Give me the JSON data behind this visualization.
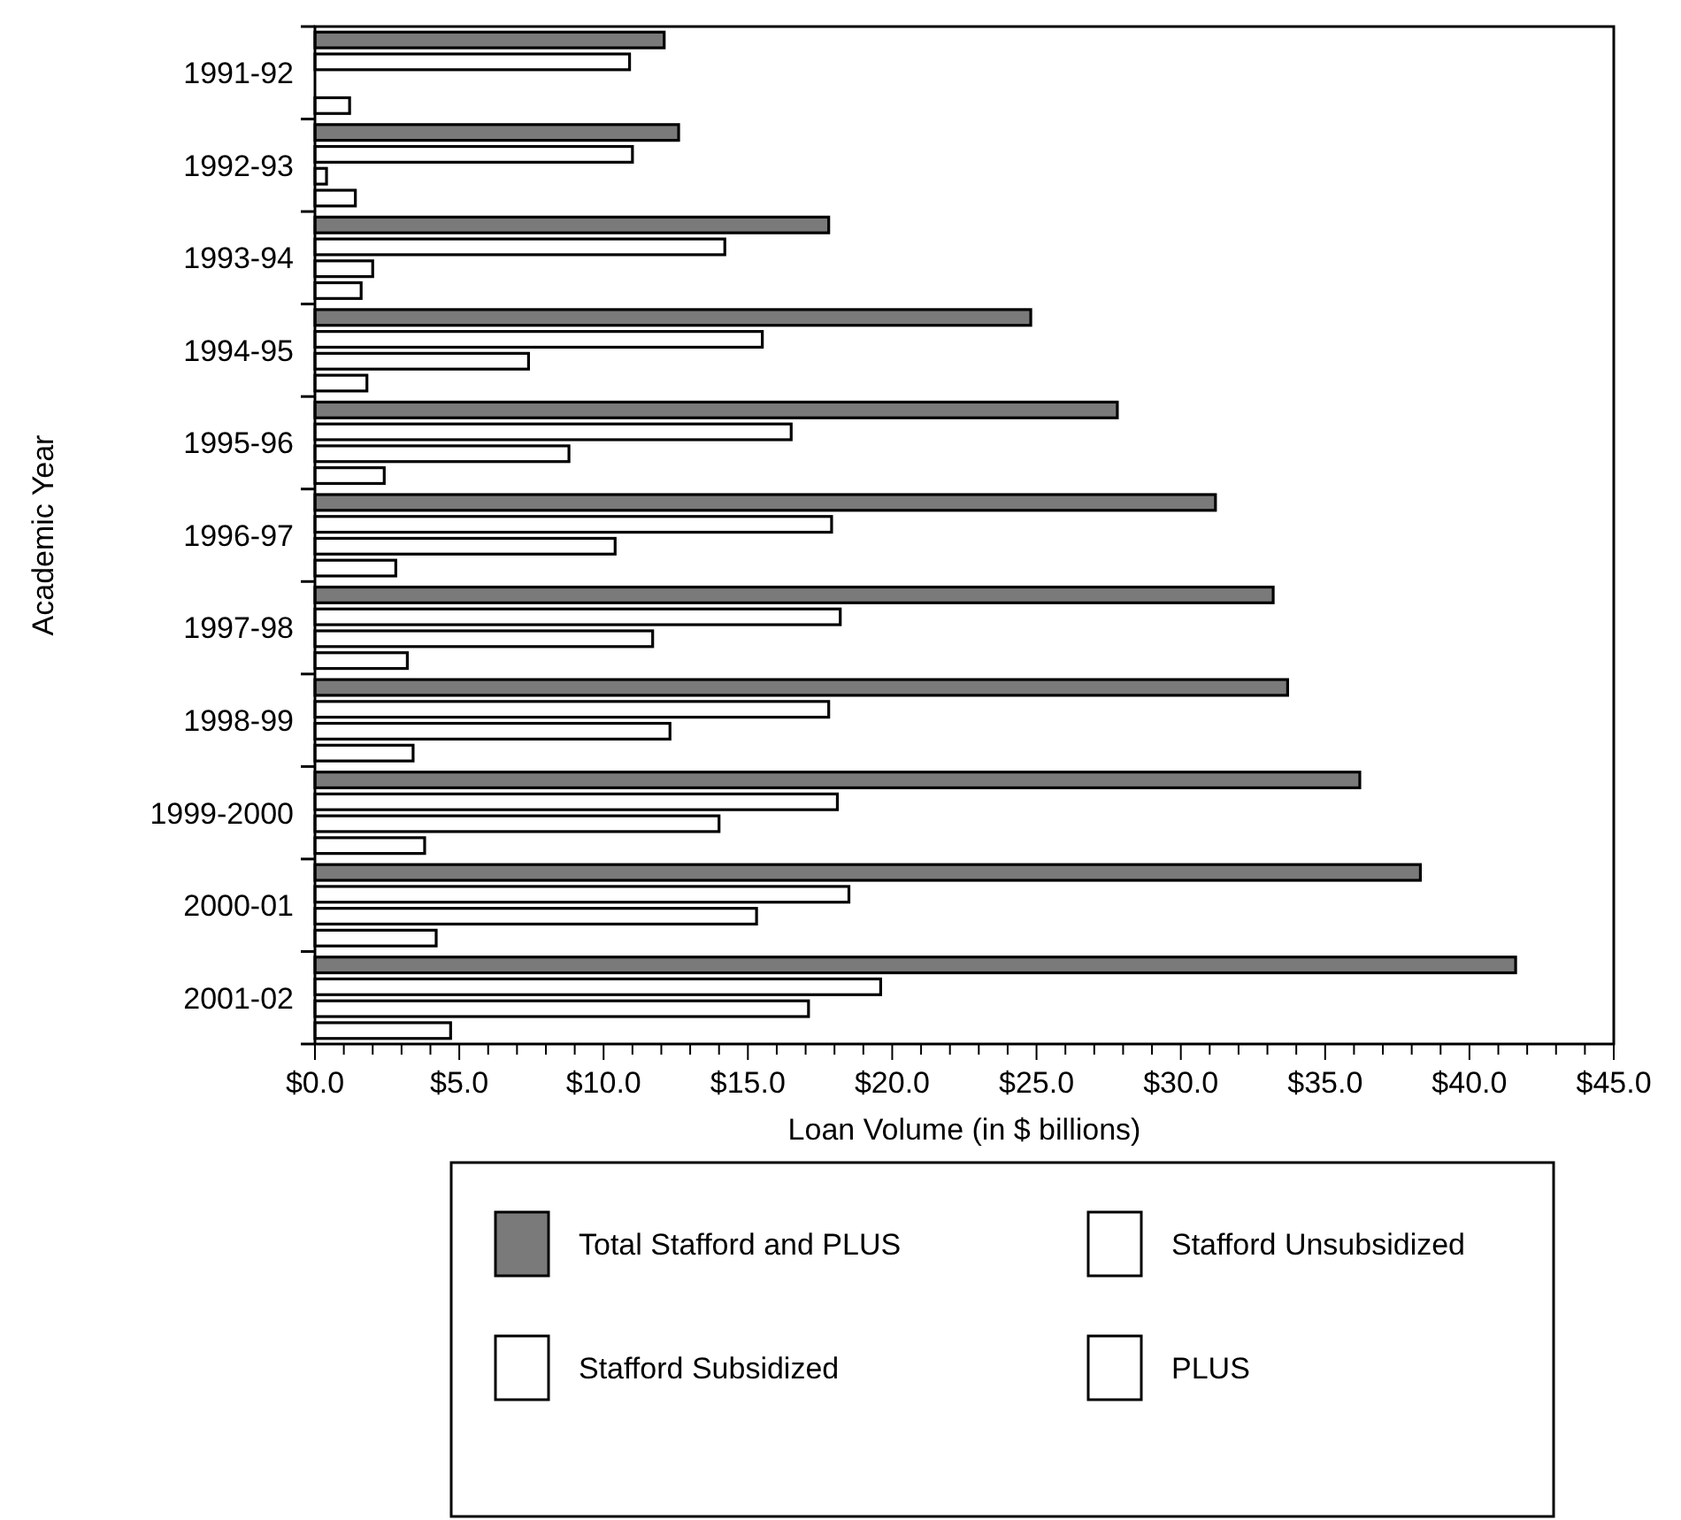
{
  "chart_data": {
    "type": "bar",
    "orientation": "horizontal",
    "xlabel": "Loan Volume (in $ billions)",
    "ylabel": "Academic Year",
    "categories": [
      "1991-92",
      "1992-93",
      "1993-94",
      "1994-95",
      "1995-96",
      "1996-97",
      "1997-98",
      "1998-99",
      "1999-2000",
      "2000-01",
      "2001-02"
    ],
    "series": [
      {
        "name": "Total Stafford and PLUS",
        "color": "#7a7a7a",
        "values": [
          12.1,
          12.6,
          17.8,
          24.8,
          27.8,
          31.2,
          33.2,
          33.7,
          36.2,
          38.3,
          41.6
        ]
      },
      {
        "name": "Stafford Subsidized",
        "color": "#ffffff",
        "values": [
          10.9,
          11.0,
          14.2,
          15.5,
          16.5,
          17.9,
          18.2,
          17.8,
          18.1,
          18.5,
          19.6
        ]
      },
      {
        "name": "Stafford Unsubsidized",
        "color": "#ffffff",
        "values": [
          null,
          0.4,
          2.0,
          7.4,
          8.8,
          10.4,
          11.7,
          12.3,
          14.0,
          15.3,
          17.1
        ]
      },
      {
        "name": "PLUS",
        "color": "#ffffff",
        "values": [
          1.2,
          1.4,
          1.6,
          1.8,
          2.4,
          2.8,
          3.2,
          3.4,
          3.8,
          4.2,
          4.7
        ]
      }
    ],
    "xlim": [
      0,
      45
    ],
    "xticks": [
      {
        "value": 0,
        "label": "$0.0"
      },
      {
        "value": 1,
        "label": null
      },
      {
        "value": 2,
        "label": null
      },
      {
        "value": 3,
        "label": null
      },
      {
        "value": 4,
        "label": null
      },
      {
        "value": 5,
        "label": "$5.0"
      },
      {
        "value": 6,
        "label": null
      },
      {
        "value": 7,
        "label": null
      },
      {
        "value": 8,
        "label": null
      },
      {
        "value": 9,
        "label": null
      },
      {
        "value": 10,
        "label": "$10.0"
      },
      {
        "value": 11,
        "label": null
      },
      {
        "value": 12,
        "label": null
      },
      {
        "value": 13,
        "label": null
      },
      {
        "value": 14,
        "label": null
      },
      {
        "value": 15,
        "label": "$15.0"
      },
      {
        "value": 16,
        "label": null
      },
      {
        "value": 17,
        "label": null
      },
      {
        "value": 18,
        "label": null
      },
      {
        "value": 19,
        "label": null
      },
      {
        "value": 20,
        "label": "$20.0"
      },
      {
        "value": 21,
        "label": null
      },
      {
        "value": 22,
        "label": null
      },
      {
        "value": 23,
        "label": null
      },
      {
        "value": 24,
        "label": null
      },
      {
        "value": 25,
        "label": "$25.0"
      },
      {
        "value": 26,
        "label": null
      },
      {
        "value": 27,
        "label": null
      },
      {
        "value": 28,
        "label": null
      },
      {
        "value": 29,
        "label": null
      },
      {
        "value": 30,
        "label": "$30.0"
      },
      {
        "value": 31,
        "label": null
      },
      {
        "value": 32,
        "label": null
      },
      {
        "value": 33,
        "label": null
      },
      {
        "value": 34,
        "label": null
      },
      {
        "value": 35,
        "label": "$35.0"
      },
      {
        "value": 36,
        "label": null
      },
      {
        "value": 37,
        "label": null
      },
      {
        "value": 38,
        "label": null
      },
      {
        "value": 39,
        "label": null
      },
      {
        "value": 40,
        "label": "$40.0"
      },
      {
        "value": 41,
        "label": null
      },
      {
        "value": 42,
        "label": null
      },
      {
        "value": 43,
        "label": null
      },
      {
        "value": 44,
        "label": null
      },
      {
        "value": 45,
        "label": "$45.0"
      }
    ],
    "grid": false,
    "legend": "bottom"
  }
}
